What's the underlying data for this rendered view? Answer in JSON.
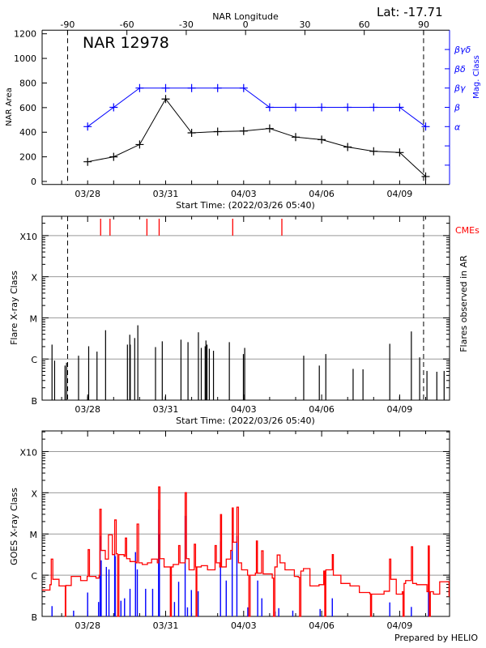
{
  "chart_data": [
    {
      "type": "line",
      "panel": "nar",
      "title": "NAR 12978",
      "corner_label": "Lat: -17.71",
      "top_axis_title": "NAR Longitude",
      "top_ticks": [
        -90,
        -60,
        -30,
        0,
        30,
        60,
        90
      ],
      "xlabel": "Start Time: (2022/03/26 05:40)",
      "x_unit": "days since 2022/03/26 00:00",
      "xlim": [
        0.25,
        15.92
      ],
      "x_tick_days": [
        2,
        5,
        8,
        11,
        14
      ],
      "x_tick_labels": [
        "03/28",
        "03/31",
        "04/03",
        "04/06",
        "04/09"
      ],
      "ylabel": "NAR Area",
      "ylim": [
        0,
        1200
      ],
      "y_ticks": [
        0,
        200,
        400,
        600,
        800,
        1000,
        1200
      ],
      "y2label": "Mag. Class",
      "y2_ticks": [
        {
          "level": 1,
          "label": ""
        },
        {
          "level": 2,
          "label": ""
        },
        {
          "level": 3,
          "label": "α"
        },
        {
          "level": 4,
          "label": "β"
        },
        {
          "level": 5,
          "label": "βγ"
        },
        {
          "level": 6,
          "label": "βδ"
        },
        {
          "level": 7,
          "label": "βγδ"
        }
      ],
      "y2lim": [
        0,
        8
      ],
      "limb_longitudes": [
        -90,
        90
      ],
      "limb_days": [
        1.23,
        14.92
      ],
      "days": [
        2,
        3,
        4,
        5,
        6,
        7,
        8,
        9,
        10,
        11,
        12,
        13,
        14,
        15
      ],
      "series": [
        {
          "name": "NAR Area",
          "color": "#000000",
          "values": [
            160,
            200,
            300,
            670,
            395,
            405,
            410,
            430,
            360,
            340,
            280,
            245,
            235,
            40
          ]
        },
        {
          "name": "Mag. Class",
          "color": "#0000ff",
          "values": [
            3,
            4,
            5,
            5,
            5,
            5,
            5,
            4,
            4,
            4,
            4,
            4,
            4,
            3
          ]
        }
      ]
    },
    {
      "type": "bar",
      "panel": "flares",
      "xlabel": "Start Time: (2022/03/26 05:40)",
      "ylabel": "Flare X-ray Class",
      "y2label": "Flares observed in AR",
      "y_unit": "decades above B class (log10 flux / 1e-7 W m^-2)",
      "ylim": [
        0,
        4.47
      ],
      "y_ticks": [
        {
          "level": 0,
          "label": "B"
        },
        {
          "level": 1,
          "label": "C"
        },
        {
          "level": 2,
          "label": "M"
        },
        {
          "level": 3,
          "label": "X"
        },
        {
          "level": 4,
          "label": "X10"
        }
      ],
      "cme_label": "CMEs",
      "cme_color": "#ff0000",
      "cme_days": [
        2.5,
        2.86,
        4.28,
        4.75,
        7.58,
        9.47
      ],
      "flares": [
        [
          0.63,
          1.35
        ],
        [
          0.73,
          0.96
        ],
        [
          1.13,
          0.84
        ],
        [
          1.19,
          0.91
        ],
        [
          1.65,
          1.08
        ],
        [
          2.0,
          0.09
        ],
        [
          2.04,
          1.31
        ],
        [
          2.36,
          1.18
        ],
        [
          2.69,
          1.7
        ],
        [
          3.53,
          1.35
        ],
        [
          3.62,
          1.59
        ],
        [
          3.64,
          1.35
        ],
        [
          3.81,
          1.51
        ],
        [
          3.93,
          1.82
        ],
        [
          4.61,
          1.29
        ],
        [
          4.87,
          1.43
        ],
        [
          4.99,
          0.09
        ],
        [
          5.59,
          1.47
        ],
        [
          5.86,
          1.41
        ],
        [
          6.26,
          1.65
        ],
        [
          6.37,
          1.27
        ],
        [
          6.52,
          1.31
        ],
        [
          6.55,
          1.45
        ],
        [
          6.59,
          1.35
        ],
        [
          6.68,
          1.25
        ],
        [
          6.84,
          1.2
        ],
        [
          7.45,
          1.41
        ],
        [
          7.99,
          1.12
        ],
        [
          8.04,
          1.27
        ],
        [
          10.31,
          1.08
        ],
        [
          10.91,
          0.84
        ],
        [
          11.16,
          1.12
        ],
        [
          12.21,
          0.76
        ],
        [
          12.59,
          0.75
        ],
        [
          13.62,
          1.37
        ],
        [
          14.0,
          0.09
        ],
        [
          14.45,
          1.67
        ],
        [
          14.77,
          1.04
        ],
        [
          15.05,
          0.71
        ],
        [
          15.43,
          0.69
        ],
        [
          15.71,
          0.71
        ]
      ]
    },
    {
      "type": "line",
      "panel": "goes",
      "ylabel": "GOES X-ray Class",
      "y_unit": "decades above B class (log10 flux / 1e-7 W m^-2)",
      "ylim": [
        0,
        4.5
      ],
      "y_ticks": [
        {
          "level": 0,
          "label": "B"
        },
        {
          "level": 1,
          "label": "C"
        },
        {
          "level": 2,
          "label": "M"
        },
        {
          "level": 3,
          "label": "X"
        },
        {
          "level": 4,
          "label": "X10"
        }
      ],
      "footer": "Prepared by HELIO",
      "series": [
        {
          "name": "GOES long channel",
          "color": "#ff0000",
          "points": [
            [
              0.25,
              0.64
            ],
            [
              0.55,
              0.77
            ],
            [
              0.6,
              1.39
            ],
            [
              0.66,
              0.9
            ],
            [
              0.9,
              0.74
            ],
            [
              1.13,
              0.74
            ],
            [
              1.14,
              0
            ],
            [
              1.16,
              0.75
            ],
            [
              1.37,
              0.97
            ],
            [
              1.73,
              0.87
            ],
            [
              1.98,
              0.97
            ],
            [
              2.02,
              1.62
            ],
            [
              2.07,
              0.97
            ],
            [
              2.32,
              0.93
            ],
            [
              2.44,
              1.0
            ],
            [
              2.47,
              2.6
            ],
            [
              2.52,
              1.6
            ],
            [
              2.68,
              1.39
            ],
            [
              2.8,
              1.98
            ],
            [
              2.95,
              1.5
            ],
            [
              3.04,
              2.34
            ],
            [
              3.1,
              1.52
            ],
            [
              3.15,
              0
            ],
            [
              3.2,
              1.5
            ],
            [
              3.4,
              1.46
            ],
            [
              3.45,
              1.9
            ],
            [
              3.5,
              1.4
            ],
            [
              3.63,
              1.33
            ],
            [
              3.85,
              1.3
            ],
            [
              3.9,
              2.24
            ],
            [
              3.96,
              1.3
            ],
            [
              4.1,
              1.26
            ],
            [
              4.3,
              1.3
            ],
            [
              4.46,
              1.39
            ],
            [
              4.68,
              1.3
            ],
            [
              4.73,
              3.14
            ],
            [
              4.78,
              1.4
            ],
            [
              4.94,
              1.2
            ],
            [
              5.18,
              0
            ],
            [
              5.22,
              1.2
            ],
            [
              5.29,
              1.26
            ],
            [
              5.5,
              1.72
            ],
            [
              5.55,
              1.3
            ],
            [
              5.72,
              1.3
            ],
            [
              5.75,
              3.0
            ],
            [
              5.8,
              1.4
            ],
            [
              5.9,
              1.13
            ],
            [
              6.1,
              1.75
            ],
            [
              6.15,
              1.2
            ],
            [
              6.17,
              0
            ],
            [
              6.2,
              1.2
            ],
            [
              6.37,
              1.23
            ],
            [
              6.61,
              1.13
            ],
            [
              6.9,
              1.72
            ],
            [
              6.95,
              1.3
            ],
            [
              7.08,
              1.2
            ],
            [
              7.11,
              2.47
            ],
            [
              7.15,
              1.2
            ],
            [
              7.33,
              1.39
            ],
            [
              7.5,
              1.6
            ],
            [
              7.56,
              2.63
            ],
            [
              7.6,
              1.8
            ],
            [
              7.74,
              2.65
            ],
            [
              7.8,
              1.3
            ],
            [
              7.92,
              1.13
            ],
            [
              8.15,
              1.0
            ],
            [
              8.2,
              0
            ],
            [
              8.25,
              1.0
            ],
            [
              8.45,
              1.05
            ],
            [
              8.49,
              1.83
            ],
            [
              8.53,
              1.05
            ],
            [
              8.69,
              1.59
            ],
            [
              8.75,
              1.03
            ],
            [
              8.87,
              1.03
            ],
            [
              9.1,
              0.93
            ],
            [
              9.15,
              0
            ],
            [
              9.2,
              1.2
            ],
            [
              9.29,
              1.49
            ],
            [
              9.4,
              1.3
            ],
            [
              9.59,
              1.13
            ],
            [
              9.95,
              0.97
            ],
            [
              10.1,
              0.95
            ],
            [
              10.15,
              0
            ],
            [
              10.2,
              1.1
            ],
            [
              10.3,
              1.16
            ],
            [
              10.55,
              0.74
            ],
            [
              10.9,
              0.77
            ],
            [
              11.08,
              1.1
            ],
            [
              11.12,
              0
            ],
            [
              11.16,
              1.13
            ],
            [
              11.41,
              1.5
            ],
            [
              11.45,
              1.0
            ],
            [
              11.74,
              0.8
            ],
            [
              12.09,
              0.74
            ],
            [
              12.45,
              0.58
            ],
            [
              12.85,
              0.55
            ],
            [
              12.88,
              0
            ],
            [
              12.92,
              0.54
            ],
            [
              13.4,
              0.61
            ],
            [
              13.61,
              1.39
            ],
            [
              13.66,
              0.9
            ],
            [
              13.87,
              0.54
            ],
            [
              14.1,
              0.6
            ],
            [
              14.13,
              0
            ],
            [
              14.17,
              0.8
            ],
            [
              14.23,
              0.87
            ],
            [
              14.45,
              1.69
            ],
            [
              14.5,
              0.8
            ],
            [
              14.65,
              0.77
            ],
            [
              15.05,
              0.6
            ],
            [
              15.1,
              1.71
            ],
            [
              15.14,
              0
            ],
            [
              15.18,
              0.6
            ],
            [
              15.3,
              0.54
            ],
            [
              15.54,
              0.84
            ],
            [
              15.9,
              0.48
            ]
          ]
        },
        {
          "name": "GOES short channel",
          "color": "#0000ff",
          "bars": [
            [
              0.63,
              0.25
            ],
            [
              1.46,
              0.14
            ],
            [
              2.0,
              0.58
            ],
            [
              2.42,
              0.35
            ],
            [
              2.48,
              1.95
            ],
            [
              2.52,
              1.36
            ],
            [
              2.72,
              1.2
            ],
            [
              2.82,
              1.14
            ],
            [
              3.04,
              1.52
            ],
            [
              3.06,
              1.46
            ],
            [
              3.28,
              0.38
            ],
            [
              3.42,
              0.44
            ],
            [
              3.63,
              0.67
            ],
            [
              3.84,
              1.56
            ],
            [
              3.91,
              1.14
            ],
            [
              4.23,
              0.67
            ],
            [
              4.5,
              0.67
            ],
            [
              4.73,
              2.59
            ],
            [
              4.76,
              2.0
            ],
            [
              5.34,
              0.35
            ],
            [
              5.5,
              0.84
            ],
            [
              5.75,
              2.44
            ],
            [
              5.84,
              0.22
            ],
            [
              5.99,
              0.64
            ],
            [
              6.25,
              0.61
            ],
            [
              7.11,
              1.82
            ],
            [
              7.33,
              0.87
            ],
            [
              7.56,
              1.88
            ],
            [
              7.74,
              1.95
            ],
            [
              8.16,
              0.22
            ],
            [
              8.54,
              0.87
            ],
            [
              8.7,
              0.44
            ],
            [
              9.21,
              0.12
            ],
            [
              9.35,
              0.2
            ],
            [
              9.89,
              0.14
            ],
            [
              10.94,
              0.18
            ],
            [
              11.41,
              0.44
            ],
            [
              13.62,
              0.34
            ],
            [
              14.45,
              0.23
            ],
            [
              15.11,
              0.71
            ]
          ]
        }
      ]
    }
  ]
}
